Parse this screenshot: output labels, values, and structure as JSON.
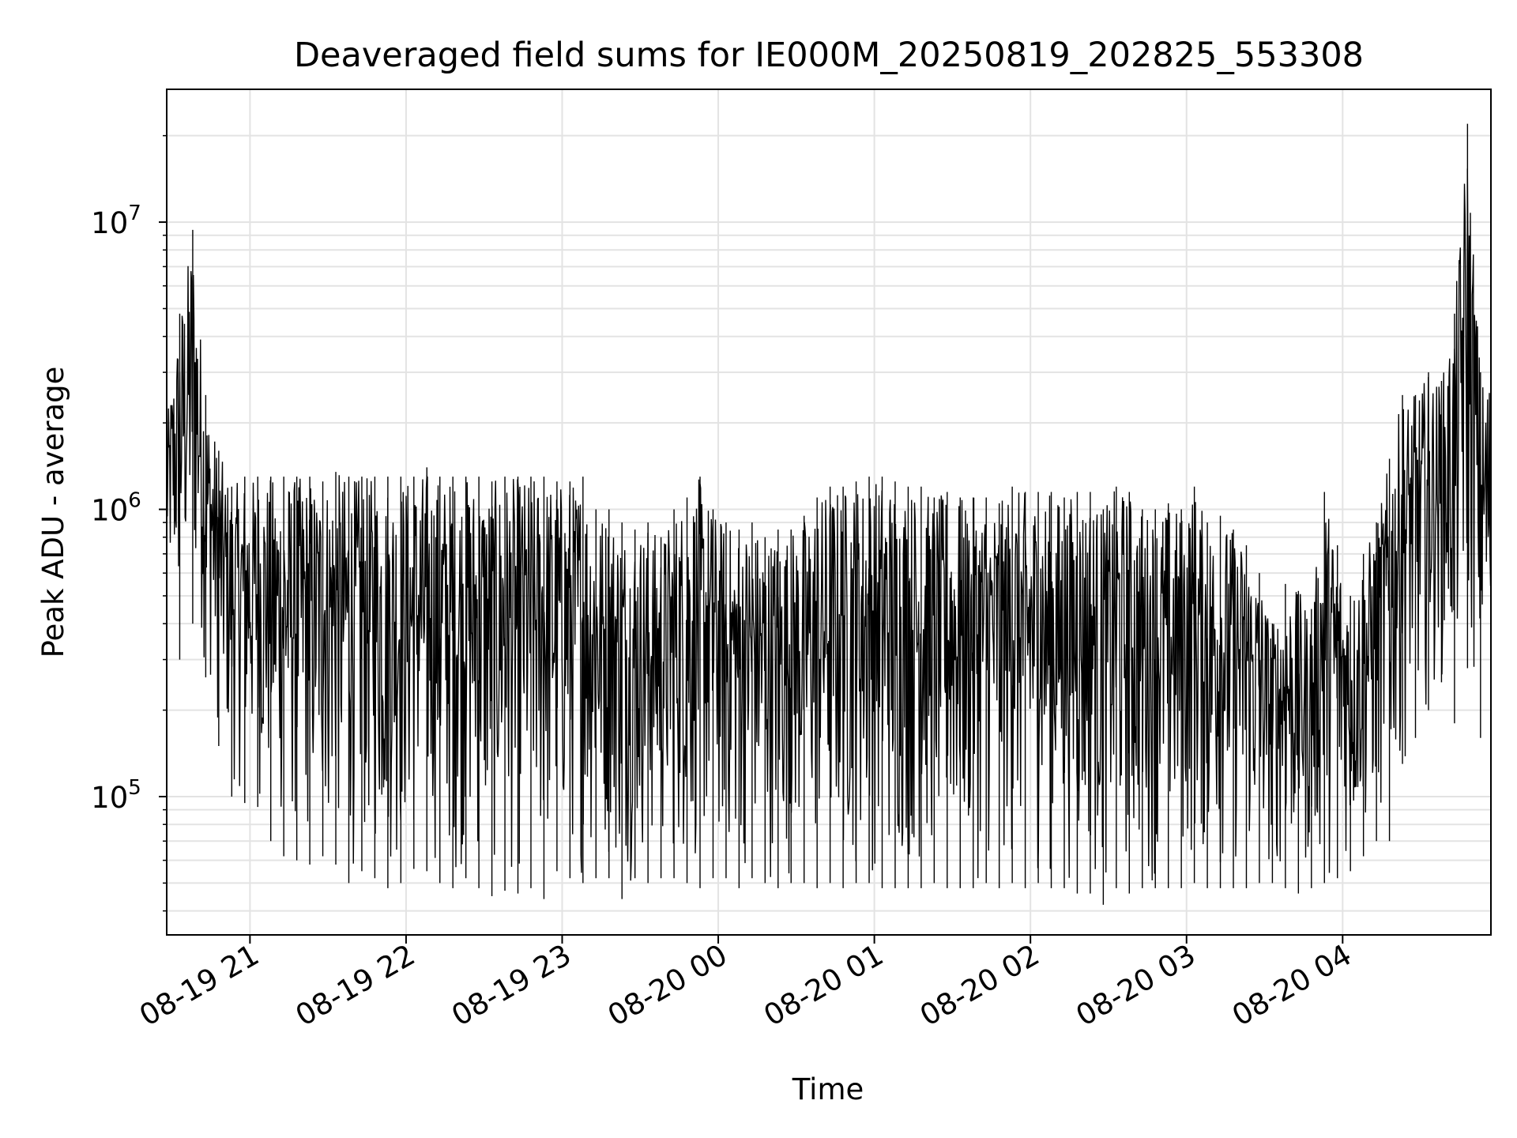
{
  "chart_data": {
    "type": "line",
    "title": "Deaveraged field sums for IE000M_20250819_202825_553308",
    "xlabel": "Time",
    "ylabel": "Peak ADU - average",
    "yscale": "log",
    "ylim": [
      33000,
      29000000
    ],
    "xlim": [
      "2025-08-19 20:28",
      "2025-08-20 04:57"
    ],
    "grid": true,
    "line_color": "#000000",
    "x_ticks": [
      {
        "label": "08-19 21",
        "time": "2025-08-19 21:00"
      },
      {
        "label": "08-19 22",
        "time": "2025-08-19 22:00"
      },
      {
        "label": "08-19 23",
        "time": "2025-08-19 23:00"
      },
      {
        "label": "08-20 00",
        "time": "2025-08-20 00:00"
      },
      {
        "label": "08-20 01",
        "time": "2025-08-20 01:00"
      },
      {
        "label": "08-20 02",
        "time": "2025-08-20 02:00"
      },
      {
        "label": "08-20 03",
        "time": "2025-08-20 03:00"
      },
      {
        "label": "08-20 04",
        "time": "2025-08-20 04:00"
      }
    ],
    "y_ticks": [
      {
        "base": "10",
        "exp": "5",
        "value": 100000
      },
      {
        "base": "10",
        "exp": "6",
        "value": 1000000
      },
      {
        "base": "10",
        "exp": "7",
        "value": 10000000
      }
    ],
    "series": [
      {
        "x": [
          "2025-08-19 20:28",
          "2025-08-19 20:33",
          "2025-08-19 20:38",
          "2025-08-19 20:43",
          "2025-08-19 20:48",
          "2025-08-19 20:53",
          "2025-08-19 20:58",
          "2025-08-19 21:03",
          "2025-08-19 21:08",
          "2025-08-19 21:13",
          "2025-08-19 21:18",
          "2025-08-19 21:23",
          "2025-08-19 21:28",
          "2025-08-19 21:33",
          "2025-08-19 21:38",
          "2025-08-19 21:43",
          "2025-08-19 21:48",
          "2025-08-19 21:53",
          "2025-08-19 21:58",
          "2025-08-19 22:03",
          "2025-08-19 22:08",
          "2025-08-19 22:13",
          "2025-08-19 22:18",
          "2025-08-19 22:23",
          "2025-08-19 22:28",
          "2025-08-19 22:33",
          "2025-08-19 22:38",
          "2025-08-19 22:43",
          "2025-08-19 22:48",
          "2025-08-19 22:53",
          "2025-08-19 22:58",
          "2025-08-19 23:03",
          "2025-08-19 23:08",
          "2025-08-19 23:13",
          "2025-08-19 23:18",
          "2025-08-19 23:23",
          "2025-08-19 23:28",
          "2025-08-19 23:33",
          "2025-08-19 23:38",
          "2025-08-19 23:43",
          "2025-08-19 23:48",
          "2025-08-19 23:53",
          "2025-08-19 23:58",
          "2025-08-20 00:03",
          "2025-08-20 00:08",
          "2025-08-20 00:13",
          "2025-08-20 00:18",
          "2025-08-20 00:23",
          "2025-08-20 00:28",
          "2025-08-20 00:33",
          "2025-08-20 00:38",
          "2025-08-20 00:43",
          "2025-08-20 00:48",
          "2025-08-20 00:53",
          "2025-08-20 00:58",
          "2025-08-20 01:03",
          "2025-08-20 01:08",
          "2025-08-20 01:13",
          "2025-08-20 01:18",
          "2025-08-20 01:23",
          "2025-08-20 01:28",
          "2025-08-20 01:33",
          "2025-08-20 01:38",
          "2025-08-20 01:43",
          "2025-08-20 01:48",
          "2025-08-20 01:53",
          "2025-08-20 01:58",
          "2025-08-20 02:03",
          "2025-08-20 02:08",
          "2025-08-20 02:13",
          "2025-08-20 02:18",
          "2025-08-20 02:23",
          "2025-08-20 02:28",
          "2025-08-20 02:33",
          "2025-08-20 02:38",
          "2025-08-20 02:43",
          "2025-08-20 02:48",
          "2025-08-20 02:53",
          "2025-08-20 02:58",
          "2025-08-20 03:03",
          "2025-08-20 03:08",
          "2025-08-20 03:13",
          "2025-08-20 03:18",
          "2025-08-20 03:23",
          "2025-08-20 03:28",
          "2025-08-20 03:33",
          "2025-08-20 03:38",
          "2025-08-20 03:43",
          "2025-08-20 03:48",
          "2025-08-20 03:53",
          "2025-08-20 03:58",
          "2025-08-20 04:03",
          "2025-08-20 04:08",
          "2025-08-20 04:13",
          "2025-08-20 04:18",
          "2025-08-20 04:23",
          "2025-08-20 04:28",
          "2025-08-20 04:33",
          "2025-08-20 04:38",
          "2025-08-20 04:43",
          "2025-08-20 04:48",
          "2025-08-20 04:53"
        ],
        "low": [
          450000,
          300000,
          400000,
          260000,
          150000,
          100000,
          95000,
          92000,
          70000,
          62000,
          60000,
          58000,
          62000,
          58000,
          50000,
          55000,
          52000,
          48000,
          50000,
          56000,
          55000,
          50000,
          48000,
          52000,
          48000,
          45000,
          47000,
          46000,
          48000,
          44000,
          55000,
          52000,
          50000,
          52000,
          52000,
          44000,
          52000,
          50000,
          52000,
          52000,
          50000,
          48000,
          52000,
          52000,
          48000,
          52000,
          50000,
          48000,
          50000,
          50000,
          48000,
          50000,
          48000,
          50000,
          50000,
          48000,
          48000,
          48000,
          48000,
          50000,
          48000,
          48000,
          48000,
          50000,
          48000,
          50000,
          48000,
          50000,
          48000,
          48000,
          46000,
          46000,
          42000,
          48000,
          46000,
          48000,
          48000,
          48000,
          48000,
          50000,
          48000,
          48000,
          48000,
          48000,
          50000,
          50000,
          48000,
          46000,
          48000,
          50000,
          52000,
          55000,
          62000,
          70000,
          70000,
          130000,
          160000,
          200000,
          250000,
          180000,
          280000,
          160000
        ],
        "high": [
          2000000,
          4800000,
          9400000,
          2500000,
          1600000,
          1200000,
          1300000,
          1300000,
          1300000,
          1300000,
          1300000,
          1300000,
          1250000,
          1350000,
          1300000,
          1300000,
          1300000,
          1300000,
          1300000,
          1300000,
          1400000,
          1300000,
          1300000,
          1300000,
          1300000,
          1250000,
          1300000,
          1300000,
          1300000,
          1300000,
          1250000,
          1250000,
          1300000,
          1000000,
          1000000,
          900000,
          850000,
          900000,
          800000,
          1000000,
          1100000,
          1300000,
          1000000,
          900000,
          850000,
          900000,
          800000,
          850000,
          850000,
          950000,
          1100000,
          1200000,
          1200000,
          1250000,
          1300000,
          1300000,
          1250000,
          1200000,
          1200000,
          1100000,
          1150000,
          1100000,
          1100000,
          1100000,
          1050000,
          1200000,
          1150000,
          1150000,
          1150000,
          1100000,
          1150000,
          1150000,
          1000000,
          1200000,
          1150000,
          1000000,
          1000000,
          1050000,
          1000000,
          1200000,
          900000,
          950000,
          850000,
          750000,
          600000,
          400000,
          550000,
          520000,
          450000,
          1150000,
          750000,
          500000,
          700000,
          900000,
          1500000,
          2500000,
          2500000,
          3000000,
          2800000,
          4800000,
          22000000,
          3000000
        ]
      }
    ]
  }
}
